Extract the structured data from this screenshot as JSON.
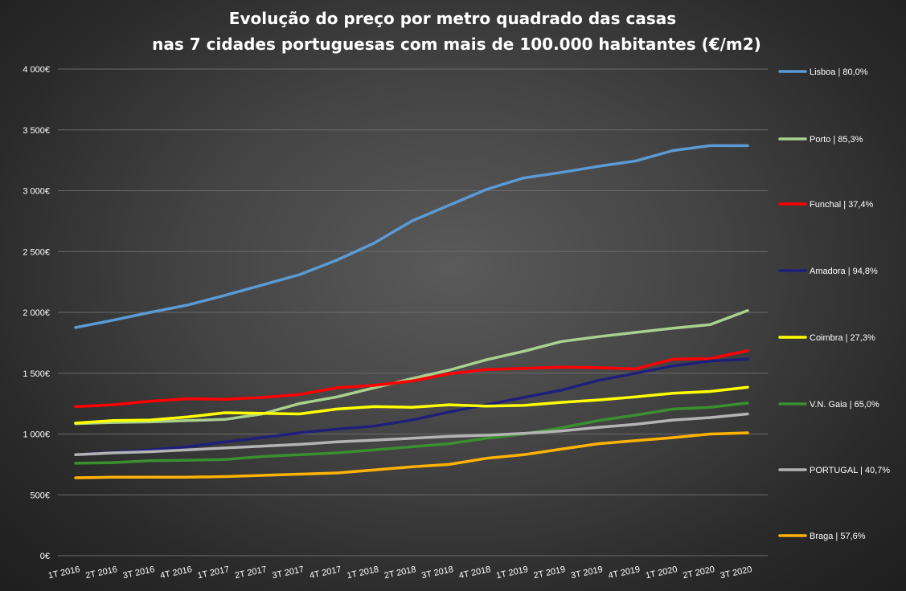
{
  "chart_data": {
    "type": "line",
    "title_line1": "Evolução do preço por metro quadrado das casas",
    "title_line2": "nas 7 cidades portuguesas com mais de 100.000 habitantes (€/m2)",
    "y_ticks": [
      "0€",
      "500€",
      "1 000€",
      "1 500€",
      "2 000€",
      "2 500€",
      "3 000€",
      "3 500€",
      "4 000€"
    ],
    "ylim": [
      0,
      4000
    ],
    "grid": true,
    "legend_position": "right",
    "categories": [
      "1T 2016",
      "2T 2016",
      "3T 2016",
      "4T 2016",
      "1T 2017",
      "2T 2017",
      "3T 2017",
      "4T 2017",
      "1T 2018",
      "2T 2018",
      "3T 2018",
      "4T 2018",
      "1T 2019",
      "2T 2019",
      "3T 2019",
      "4T 2019",
      "1T 2020",
      "2T 2020",
      "3T 2020"
    ],
    "series": [
      {
        "name": "Lisboa | 80,0%",
        "color": "#5b9bd5",
        "values": [
          1875,
          1935,
          2000,
          2060,
          2140,
          2225,
          2310,
          2430,
          2570,
          2750,
          2880,
          3010,
          3105,
          3150,
          3200,
          3245,
          3330,
          3370,
          3370
        ]
      },
      {
        "name": "Porto | 85,3%",
        "color": "#a9d18e",
        "values": [
          1085,
          1095,
          1100,
          1110,
          1120,
          1165,
          1250,
          1305,
          1380,
          1455,
          1525,
          1610,
          1680,
          1760,
          1800,
          1835,
          1870,
          1900,
          2015
        ]
      },
      {
        "name": "Funchal | 37,4%",
        "color": "#ff0000",
        "values": [
          1225,
          1240,
          1270,
          1290,
          1285,
          1300,
          1325,
          1380,
          1400,
          1435,
          1495,
          1530,
          1540,
          1550,
          1545,
          1535,
          1615,
          1620,
          1685
        ]
      },
      {
        "name": "Amadora | 94,8%",
        "color": "#1f1f7a",
        "values": [
          830,
          850,
          870,
          895,
          935,
          970,
          1010,
          1040,
          1065,
          1115,
          1180,
          1240,
          1300,
          1360,
          1440,
          1500,
          1560,
          1600,
          1615
        ]
      },
      {
        "name": "Coimbra | 27,3%",
        "color": "#ffff00",
        "values": [
          1090,
          1110,
          1115,
          1140,
          1175,
          1170,
          1165,
          1205,
          1225,
          1220,
          1240,
          1230,
          1235,
          1260,
          1280,
          1305,
          1335,
          1350,
          1385
        ]
      },
      {
        "name": "V.N. Gaia | 65,0%",
        "color": "#3a8f2f",
        "values": [
          760,
          765,
          780,
          785,
          790,
          815,
          830,
          845,
          870,
          895,
          920,
          965,
          1000,
          1050,
          1110,
          1155,
          1205,
          1220,
          1255
        ]
      },
      {
        "name": "PORTUGAL | 40,7%",
        "color": "#b4b4b4",
        "values": [
          830,
          845,
          855,
          870,
          885,
          900,
          915,
          935,
          950,
          965,
          980,
          990,
          1005,
          1025,
          1055,
          1080,
          1115,
          1135,
          1165
        ]
      },
      {
        "name": "Braga | 57,6%",
        "color": "#ffb300",
        "values": [
          640,
          645,
          645,
          645,
          650,
          660,
          670,
          680,
          705,
          730,
          750,
          800,
          830,
          875,
          920,
          945,
          970,
          1000,
          1010
        ]
      }
    ]
  }
}
